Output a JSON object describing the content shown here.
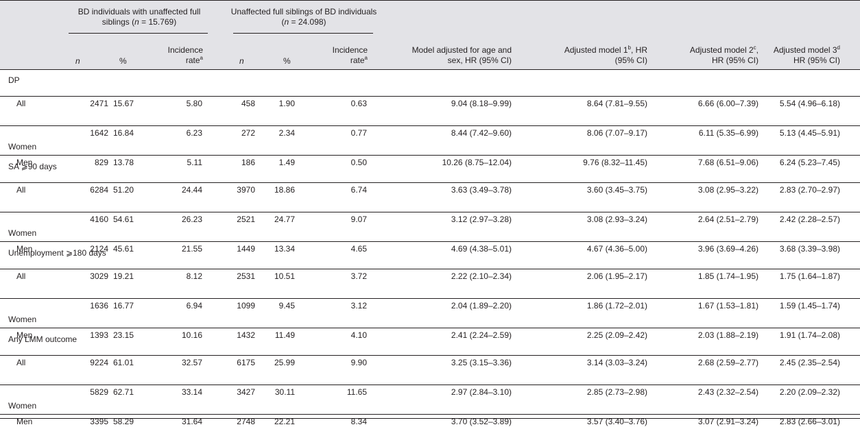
{
  "header": {
    "group1": {
      "text": "BD individuals with unaffected full siblings (",
      "n_sym": "n",
      "n_val": " = 15.769)"
    },
    "group2": {
      "text": "Unaffected full siblings of BD individuals (",
      "n_sym": "n",
      "n_val": " = 24.098)"
    },
    "n": "n",
    "pct": "%",
    "inc_line1": "Incidence",
    "inc_line2": "rate",
    "inc_sup": "a",
    "m0_line1": "Model adjusted for age and",
    "m0_line2": "sex, HR (95% CI)",
    "m1_pre": "Adjusted model 1",
    "m1_sup": "b",
    "m1_post": ", HR",
    "m1_line2": "(95% CI)",
    "m2_pre": "Adjusted model 2",
    "m2_sup": "c",
    "m2_post": ",",
    "m2_line2": "HR (95% CI)",
    "m3_pre": "Adjusted model 3",
    "m3_sup": "d",
    "m3_line2": "HR (95% CI)"
  },
  "sections": [
    {
      "title": "DP",
      "rows": [
        {
          "label": "All",
          "c": [
            "2471",
            "15.67",
            "5.80",
            "458",
            "1.90",
            "0.63",
            "9.04 (8.18–9.99)",
            "8.64 (7.81–9.55)",
            "6.66 (6.00–7.39)",
            "5.54 (4.96–6.18)"
          ]
        },
        {
          "label": "Women",
          "c": [
            "1642",
            "16.84",
            "6.23",
            "272",
            "2.34",
            "0.77",
            "8.44 (7.42–9.60)",
            "8.06 (7.07–9.17)",
            "6.11 (5.35–6.99)",
            "5.13 (4.45–5.91)"
          ]
        },
        {
          "label": "Men",
          "c": [
            "829",
            "13.78",
            "5.11",
            "186",
            "1.49",
            "0.50",
            "10.26 (8.75–12.04)",
            "9.76 (8.32–11.45)",
            "7.68 (6.51–9.06)",
            "6.24 (5.23–7.45)"
          ]
        }
      ]
    },
    {
      "title": "SA ⩾90 days",
      "rows": [
        {
          "label": "All",
          "c": [
            "6284",
            "51.20",
            "24.44",
            "3970",
            "18.86",
            "6.74",
            "3.63 (3.49–3.78)",
            "3.60 (3.45–3.75)",
            "3.08 (2.95–3.22)",
            "2.83 (2.70–2.97)"
          ]
        },
        {
          "label": "Women",
          "c": [
            "4160",
            "54.61",
            "26.23",
            "2521",
            "24.77",
            "9.07",
            "3.12 (2.97–3.28)",
            "3.08 (2.93–3.24)",
            "2.64 (2.51–2.79)",
            "2.42 (2.28–2.57)"
          ]
        },
        {
          "label": "Men",
          "c": [
            "2124",
            "45.61",
            "21.55",
            "1449",
            "13.34",
            "4.65",
            "4.69 (4.38–5.01)",
            "4.67 (4.36–5.00)",
            "3.96 (3.69–4.26)",
            "3.68 (3.39–3.98)"
          ]
        }
      ]
    },
    {
      "title": "Unemployment ⩾180 days",
      "rows": [
        {
          "label": "All",
          "c": [
            "3029",
            "19.21",
            "8.12",
            "2531",
            "10.51",
            "3.72",
            "2.22 (2.10–2.34)",
            "2.06 (1.95–2.17)",
            "1.85 (1.74–1.95)",
            "1.75 (1.64–1.87)"
          ]
        },
        {
          "label": "Women",
          "c": [
            "1636",
            "16.77",
            "6.94",
            "1099",
            "9.45",
            "3.12",
            "2.04 (1.89–2.20)",
            "1.86 (1.72–2.01)",
            "1.67 (1.53–1.81)",
            "1.59 (1.45–1.74)"
          ]
        },
        {
          "label": "Men",
          "c": [
            "1393",
            "23.15",
            "10.16",
            "1432",
            "11.49",
            "4.10",
            "2.41 (2.24–2.59)",
            "2.25 (2.09–2.42)",
            "2.03 (1.88–2.19)",
            "1.91 (1.74–2.08)"
          ]
        }
      ]
    },
    {
      "title": "Any LMM outcome",
      "rows": [
        {
          "label": "All",
          "c": [
            "9224",
            "61.01",
            "32.57",
            "6175",
            "25.99",
            "9.90",
            "3.25 (3.15–3.36)",
            "3.14 (3.03–3.24)",
            "2.68 (2.59–2.77)",
            "2.45 (2.35–2.54)"
          ]
        },
        {
          "label": "Women",
          "c": [
            "5829",
            "62.71",
            "33.14",
            "3427",
            "30.11",
            "11.65",
            "2.97 (2.84–3.10)",
            "2.85 (2.73–2.98)",
            "2.43 (2.32–2.54)",
            "2.20 (2.09–2.32)"
          ]
        },
        {
          "label": "Men",
          "c": [
            "3395",
            "58.29",
            "31.64",
            "2748",
            "22.21",
            "8.34",
            "3.70 (3.52–3.89)",
            "3.57 (3.40–3.76)",
            "3.07 (2.91–3.24)",
            "2.83 (2.66–3.01)"
          ]
        }
      ]
    }
  ]
}
